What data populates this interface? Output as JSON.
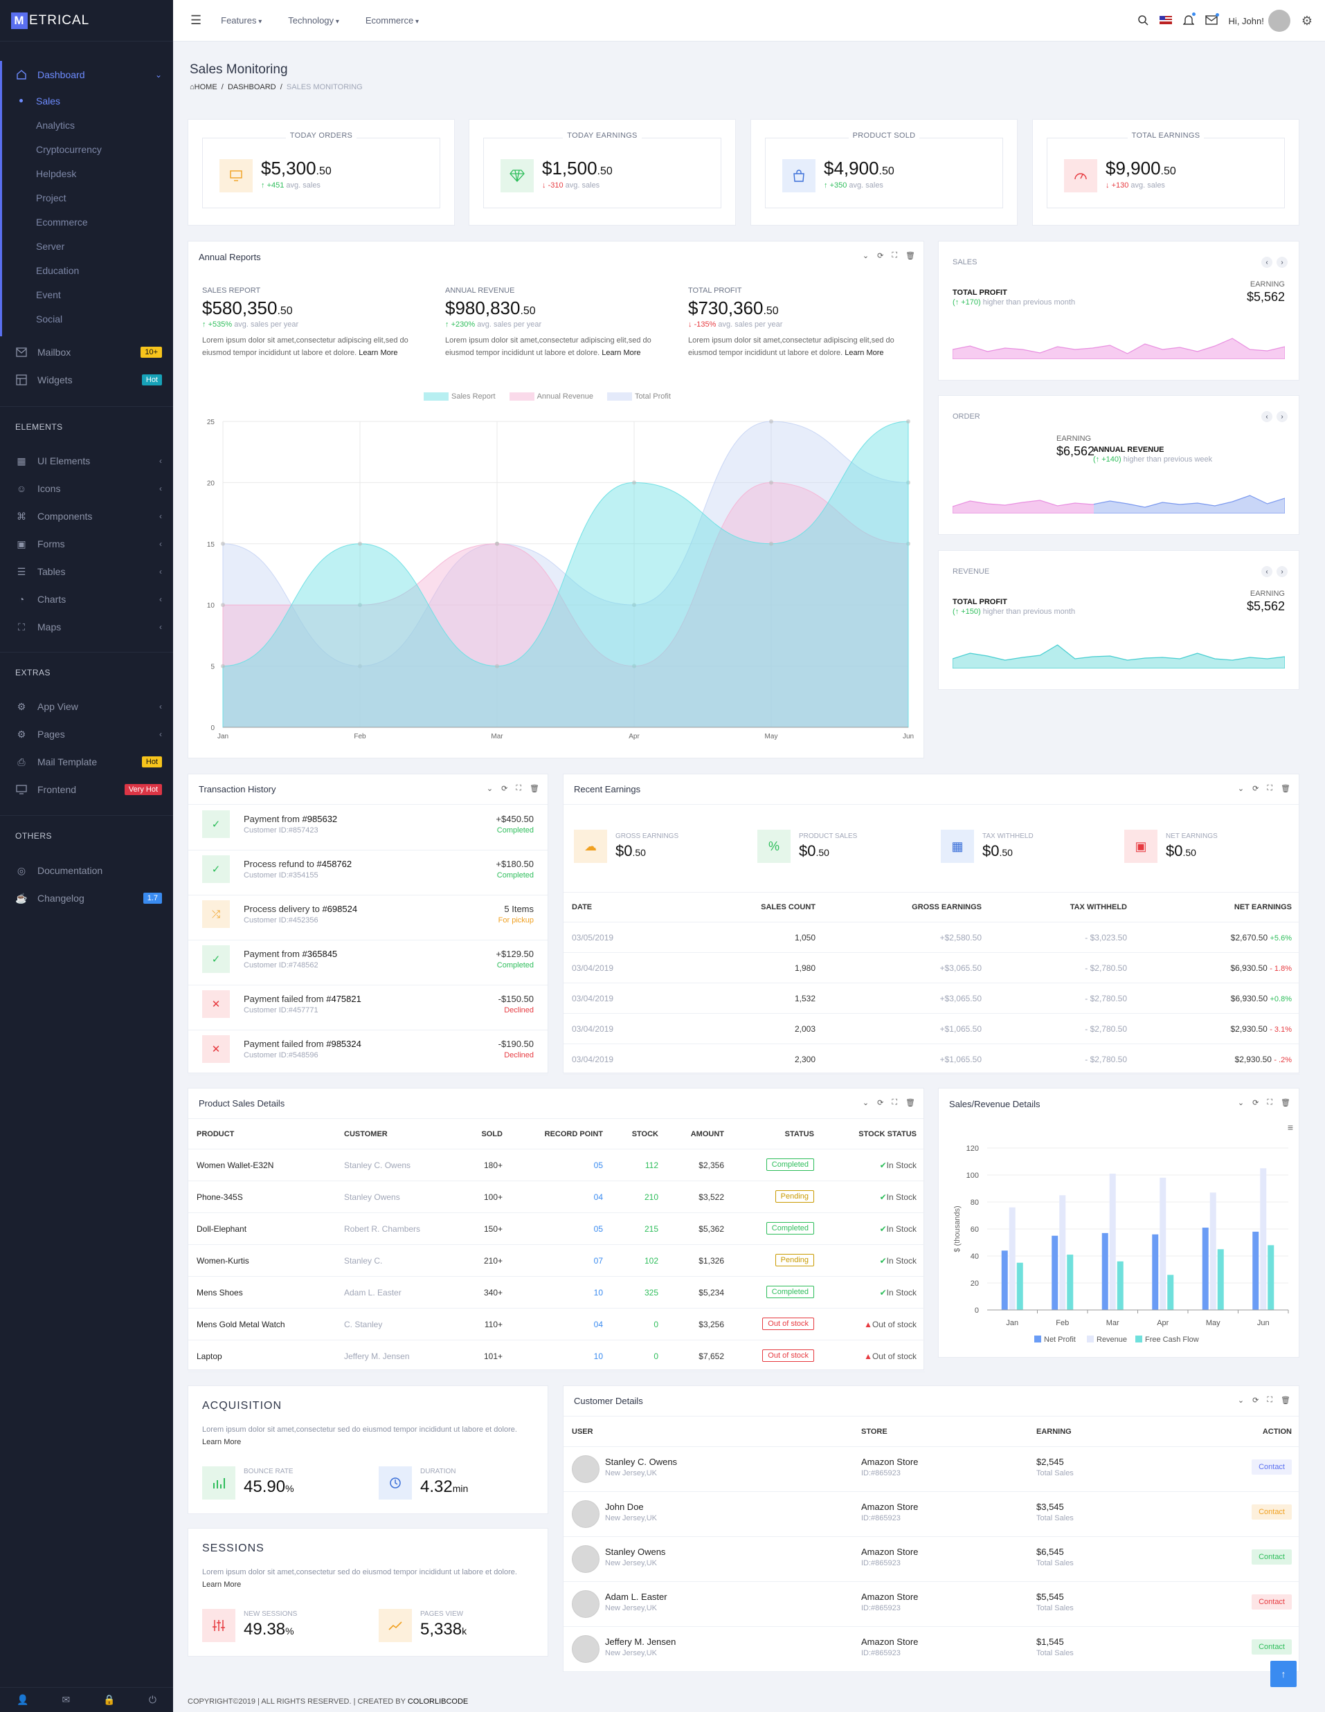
{
  "app": {
    "logo_letter": "M",
    "logo_text": "ETRICAL"
  },
  "sidebar": {
    "dashboard": "Dashboard",
    "dashboard_sub": [
      "Sales",
      "Analytics",
      "Cryptocurrency",
      "Helpdesk",
      "Project",
      "Ecommerce",
      "Server",
      "Education",
      "Event",
      "Social"
    ],
    "mailbox": "Mailbox",
    "mailbox_badge": "10+",
    "widgets": "Widgets",
    "widgets_badge": "Hot",
    "elements_title": "ELEMENTS",
    "elements": [
      "UI Elements",
      "Icons",
      "Components",
      "Forms",
      "Tables",
      "Charts",
      "Maps"
    ],
    "extras_title": "EXTRAS",
    "app_view": "App View",
    "pages": "Pages",
    "mail_template": "Mail Template",
    "mail_template_badge": "Hot",
    "frontend": "Frontend",
    "frontend_badge": "Very Hot",
    "others_title": "OTHERS",
    "documentation": "Documentation",
    "changelog": "Changelog",
    "changelog_badge": "1.7"
  },
  "topbar": {
    "nav": [
      "Features",
      "Technology",
      "Ecommerce"
    ],
    "greeting": "Hi, John!"
  },
  "page": {
    "title": "Sales Monitoring",
    "breadcrumb": [
      "HOME",
      "DASHBOARD",
      "SALES MONITORING"
    ]
  },
  "stats": [
    {
      "label": "TODAY ORDERS",
      "value": "$5,300",
      "cents": ".50",
      "change": "+451",
      "note": "avg. sales",
      "dir": "up"
    },
    {
      "label": "TODAY EARNINGS",
      "value": "$1,500",
      "cents": ".50",
      "change": "-310",
      "note": "avg. sales",
      "dir": "down"
    },
    {
      "label": "PRODUCT SOLD",
      "value": "$4,900",
      "cents": ".50",
      "change": "+350",
      "note": "avg. sales",
      "dir": "up"
    },
    {
      "label": "TOTAL EARNINGS",
      "value": "$9,900",
      "cents": ".50",
      "change": "+130",
      "note": "avg. sales",
      "dir": "down"
    }
  ],
  "annual": {
    "title": "Annual Reports",
    "items": [
      {
        "label": "SALES REPORT",
        "value": "$580,350",
        "cents": ".50",
        "change": "+535%",
        "note": "avg. sales per year",
        "dir": "up"
      },
      {
        "label": "ANNUAL REVENUE",
        "value": "$980,830",
        "cents": ".50",
        "change": "+230%",
        "note": "avg. sales per year",
        "dir": "up"
      },
      {
        "label": "TOTAL PROFIT",
        "value": "$730,360",
        "cents": ".50",
        "change": "-135%",
        "note": "avg. sales per year",
        "dir": "down"
      }
    ],
    "lorem": "Lorem ipsum dolor sit amet,consectetur adipiscing elit,sed do eiusmod tempor incididunt ut labore et dolore.",
    "learn": "Learn More"
  },
  "chart_data": [
    {
      "type": "area",
      "categories": [
        "Jan",
        "Feb",
        "Mar",
        "Apr",
        "May",
        "Jun"
      ],
      "ylim": [
        0,
        25
      ],
      "yticks": [
        0,
        5,
        10,
        15,
        20,
        25
      ],
      "series": [
        {
          "name": "Sales Report",
          "values": [
            5,
            15,
            5,
            20,
            15,
            25
          ],
          "color": "#6fe0e4"
        },
        {
          "name": "Annual Revenue",
          "values": [
            10,
            10,
            15,
            5,
            20,
            15
          ],
          "color": "#f5b6d6"
        },
        {
          "name": "Total Profit",
          "values": [
            15,
            5,
            15,
            10,
            25,
            20
          ],
          "color": "#c9d6f5"
        }
      ]
    },
    {
      "type": "bar",
      "ylabel": "$ (thousands)",
      "categories": [
        "Jan",
        "Feb",
        "Mar",
        "Apr",
        "May",
        "Jun"
      ],
      "ylim": [
        0,
        120
      ],
      "yticks": [
        0,
        20,
        40,
        60,
        80,
        100,
        120
      ],
      "series": [
        {
          "name": "Net Profit",
          "values": [
            44,
            55,
            57,
            56,
            61,
            58
          ],
          "color": "#6a9cf5"
        },
        {
          "name": "Revenue",
          "values": [
            76,
            85,
            101,
            98,
            87,
            105
          ],
          "color": "#e3e8fb"
        },
        {
          "name": "Free Cash Flow",
          "values": [
            35,
            41,
            36,
            26,
            45,
            48
          ],
          "color": "#6fe0dc"
        }
      ]
    }
  ],
  "mini": [
    {
      "label": "SALES",
      "title": "TOTAL PROFIT",
      "change": "+170",
      "note": "higher than previous month",
      "earn_label": "EARNING",
      "earn": "$5,562"
    },
    {
      "label": "ORDER",
      "earn_label": "EARNING",
      "earn": "$6,562",
      "title": "ANNUAL REVENUE",
      "change": "+140",
      "note": "higher than previous week"
    },
    {
      "label": "REVENUE",
      "title": "TOTAL PROFIT",
      "change": "+150",
      "note": "higher than previous month",
      "earn_label": "EARNING",
      "earn": "$5,562"
    }
  ],
  "transactions": {
    "title": "Transaction History",
    "rows": [
      {
        "text": "Payment from",
        "id": "#985632",
        "cust": "Customer ID:#857423",
        "amount": "+$450.50",
        "status": "Completed",
        "kind": "ok"
      },
      {
        "text": "Process refund to",
        "id": "#458762",
        "cust": "Customer ID:#354155",
        "amount": "+$180.50",
        "status": "Completed",
        "kind": "ok"
      },
      {
        "text": "Process delivery to",
        "id": "#698524",
        "cust": "Customer ID:#452356",
        "amount": "5 Items",
        "status": "For pickup",
        "kind": "pending"
      },
      {
        "text": "Payment from",
        "id": "#365845",
        "cust": "Customer ID:#748562",
        "amount": "+$129.50",
        "status": "Completed",
        "kind": "ok"
      },
      {
        "text": "Payment failed from",
        "id": "#475821",
        "cust": "Customer ID:#457771",
        "amount": "-$150.50",
        "status": "Declined",
        "kind": "fail"
      },
      {
        "text": "Payment failed from",
        "id": "#985324",
        "cust": "Customer ID:#548596",
        "amount": "-$190.50",
        "status": "Declined",
        "kind": "fail"
      }
    ]
  },
  "earnings": {
    "title": "Recent Earnings",
    "stats": [
      {
        "label": "GROSS EARNINGS",
        "value": "$0",
        "cents": ".50"
      },
      {
        "label": "PRODUCT SALES",
        "value": "$0",
        "cents": ".50"
      },
      {
        "label": "TAX WITHHELD",
        "value": "$0",
        "cents": ".50"
      },
      {
        "label": "NET EARNINGS",
        "value": "$0",
        "cents": ".50"
      }
    ],
    "headers": [
      "DATE",
      "SALES COUNT",
      "GROSS EARNINGS",
      "TAX WITHHELD",
      "NET EARNINGS"
    ],
    "rows": [
      {
        "date": "03/05/2019",
        "count": "1,050",
        "gross": "+$2,580.50",
        "tax": "- $3,023.50",
        "net": "$2,670.50",
        "pct": "+5.6%",
        "pos": true
      },
      {
        "date": "03/04/2019",
        "count": "1,980",
        "gross": "+$3,065.50",
        "tax": "- $2,780.50",
        "net": "$6,930.50",
        "pct": "- 1.8%",
        "pos": false
      },
      {
        "date": "03/04/2019",
        "count": "1,532",
        "gross": "+$3,065.50",
        "tax": "- $2,780.50",
        "net": "$6,930.50",
        "pct": "+0.8%",
        "pos": true
      },
      {
        "date": "03/04/2019",
        "count": "2,003",
        "gross": "+$1,065.50",
        "tax": "- $2,780.50",
        "net": "$2,930.50",
        "pct": "- 3.1%",
        "pos": false
      },
      {
        "date": "03/04/2019",
        "count": "2,300",
        "gross": "+$1,065.50",
        "tax": "- $2,780.50",
        "net": "$2,930.50",
        "pct": "- .2%",
        "pos": false
      }
    ]
  },
  "products": {
    "title": "Product Sales Details",
    "headers": [
      "PRODUCT",
      "CUSTOMER",
      "SOLD",
      "RECORD POINT",
      "STOCK",
      "AMOUNT",
      "STATUS",
      "STOCK STATUS"
    ],
    "rows": [
      {
        "p": "Women Wallet-E32N",
        "c": "Stanley C. Owens",
        "s": "180+",
        "r": "05",
        "st": "112",
        "a": "$2,356",
        "status": "Completed",
        "ss": "In Stock",
        "ok": true
      },
      {
        "p": "Phone-345S",
        "c": "Stanley Owens",
        "s": "100+",
        "r": "04",
        "st": "210",
        "a": "$3,522",
        "status": "Pending",
        "ss": "In Stock",
        "ok": true
      },
      {
        "p": "Doll-Elephant",
        "c": "Robert R. Chambers",
        "s": "150+",
        "r": "05",
        "st": "215",
        "a": "$5,362",
        "status": "Completed",
        "ss": "In Stock",
        "ok": true
      },
      {
        "p": "Women-Kurtis",
        "c": "Stanley C.",
        "s": "210+",
        "r": "07",
        "st": "102",
        "a": "$1,326",
        "status": "Pending",
        "ss": "In Stock",
        "ok": true
      },
      {
        "p": "Mens Shoes",
        "c": "Adam L. Easter",
        "s": "340+",
        "r": "10",
        "st": "325",
        "a": "$5,234",
        "status": "Completed",
        "ss": "In Stock",
        "ok": true
      },
      {
        "p": "Mens Gold Metal Watch",
        "c": "C. Stanley",
        "s": "110+",
        "r": "04",
        "st": "0",
        "a": "$3,256",
        "status": "Out of stock",
        "ss": "Out of stock",
        "ok": false
      },
      {
        "p": "Laptop",
        "c": "Jeffery M. Jensen",
        "s": "101+",
        "r": "10",
        "st": "0",
        "a": "$7,652",
        "status": "Out of stock",
        "ss": "Out of stock",
        "ok": false
      }
    ]
  },
  "revenue_chart": {
    "title": "Sales/Revenue Details"
  },
  "acquisition": {
    "title": "ACQUISITION",
    "text": "Lorem ipsum dolor sit amet,consectetur sed do eiusmod tempor incididunt ut labore et dolore.",
    "learn": "Learn More",
    "s1_label": "BOUNCE RATE",
    "s1_val": "45.90",
    "s1_unit": "%",
    "s2_label": "DURATION",
    "s2_val": "4.32",
    "s2_unit": "min"
  },
  "sessions": {
    "title": "SESSIONS",
    "text": "Lorem ipsum dolor sit amet,consectetur sed do eiusmod tempor incididunt ut labore et dolore.",
    "learn": "Learn More",
    "s1_label": "NEW SESSIONS",
    "s1_val": "49.38",
    "s1_unit": "%",
    "s2_label": "PAGES VIEW",
    "s2_val": "5,338",
    "s2_unit": "k"
  },
  "customers": {
    "title": "Customer Details",
    "headers": [
      "USER",
      "STORE",
      "EARNING",
      "ACTION"
    ],
    "rows": [
      {
        "name": "Stanley C. Owens",
        "loc": "New Jersey,UK",
        "store": "Amazon Store",
        "sid": "ID:#865923",
        "earn": "$2,545",
        "el": "Total Sales",
        "action": "Contact",
        "color": "#5a6ff0",
        "bg": "#eef0fd"
      },
      {
        "name": "John Doe",
        "loc": "New Jersey,UK",
        "store": "Amazon Store",
        "sid": "ID:#865923",
        "earn": "$3,545",
        "el": "Total Sales",
        "action": "Contact",
        "color": "#f0a020",
        "bg": "#fdf0dc"
      },
      {
        "name": "Stanley Owens",
        "loc": "New Jersey,UK",
        "store": "Amazon Store",
        "sid": "ID:#865923",
        "earn": "$6,545",
        "el": "Total Sales",
        "action": "Contact",
        "color": "#2dbd5a",
        "bg": "#dff5e6"
      },
      {
        "name": "Adam L. Easter",
        "loc": "New Jersey,UK",
        "store": "Amazon Store",
        "sid": "ID:#865923",
        "earn": "$5,545",
        "el": "Total Sales",
        "action": "Contact",
        "color": "#e6393f",
        "bg": "#fde5e6"
      },
      {
        "name": "Jeffery M. Jensen",
        "loc": "New Jersey,UK",
        "store": "Amazon Store",
        "sid": "ID:#865923",
        "earn": "$1,545",
        "el": "Total Sales",
        "action": "Contact",
        "color": "#2dbd5a",
        "bg": "#dff5e6"
      }
    ]
  },
  "footer": {
    "text": "COPYRIGHT©2019 | ALL RIGHTS RESERVED. | CREATED BY",
    "brand": "COLORLIBCODE"
  }
}
